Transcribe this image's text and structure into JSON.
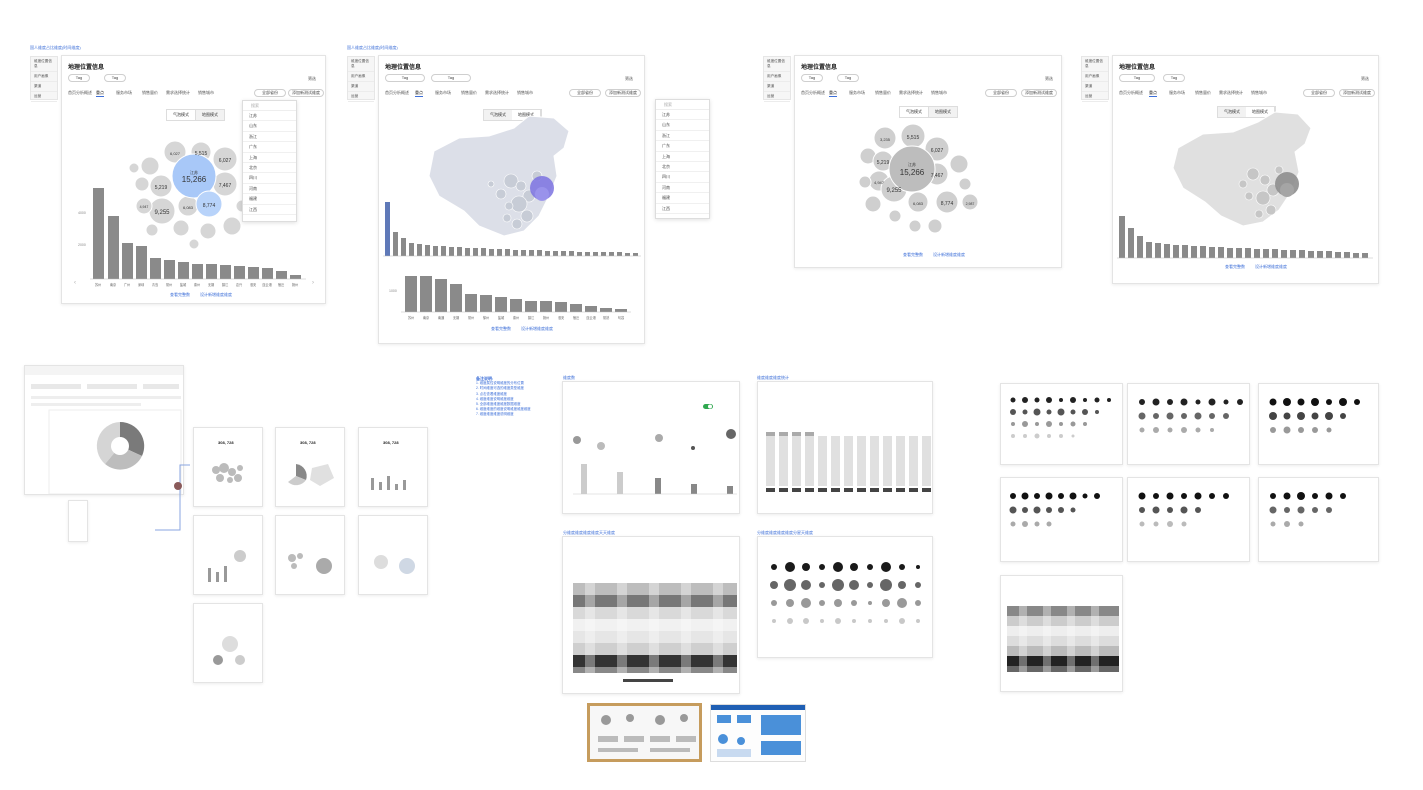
{
  "artboards": {
    "a1_title": "国人维度占比维度(时间维度)",
    "a2_title": "国人维度占比维度(时间维度)"
  },
  "widget": {
    "title": "地理位置信息",
    "tag1": "Tag",
    "tag2": "Tag",
    "tag3": "Tag",
    "filter_label": "筛选",
    "tabs": [
      "首页分析概述",
      "重点",
      "服务市场",
      "销售量价",
      "需求选择统计",
      "销售城市"
    ],
    "select_label": "全部省份",
    "add_label": "添加新测试维度",
    "toggle_bubble": "气泡模式",
    "toggle_map": "地图模式",
    "link_detail": "查看完整数",
    "link_more": "设计新增维度维度"
  },
  "sidebar": {
    "items": [
      "维度位置信息",
      "用户画像",
      "渠道",
      "运营"
    ]
  },
  "dropdown": {
    "placeholder": "搜索",
    "items": [
      "江苏",
      "山东",
      "浙江",
      "广东",
      "上海",
      "北京",
      "四川",
      "河南",
      "福建",
      "江西"
    ]
  },
  "bubbles": [
    {
      "label": "江苏",
      "value": "15,266"
    },
    {
      "label": "北京",
      "value": "6,027"
    },
    {
      "label": "四川",
      "value": "5,515"
    },
    {
      "label": "山东",
      "value": "9,255"
    },
    {
      "label": "广东",
      "value": "8,774"
    },
    {
      "label": "浙江",
      "value": "6,083"
    },
    {
      "label": "上海",
      "value": "7,467"
    },
    {
      "label": "湖北",
      "value": "4,947"
    },
    {
      "label": "河南",
      "value": "5,219"
    },
    {
      "label": "安徽",
      "value": "3,235"
    },
    {
      "label": "湖南",
      "value": "4,360"
    },
    {
      "label": "福建",
      "value": "2,987"
    },
    {
      "label": "陕西",
      "value": "3,860"
    },
    {
      "label": "辽宁",
      "value": "2,376"
    }
  ],
  "bar_categories": [
    "苏州",
    "南京",
    "广州",
    "深圳",
    "青岛",
    "常州",
    "盐城",
    "泰州",
    "无锡",
    "镇江",
    "嘉兴",
    "淮安",
    "连云港",
    "宿迁",
    "扬州"
  ],
  "bar_axis": {
    "top": "4000",
    "mid": "2000",
    "mid2": "3000",
    "low": "1000"
  },
  "notes": {
    "heading": "备注说明:",
    "lines": [
      "1. 维度属性说明维度的分布位置",
      "2. 时间维度可选的维度类型维度",
      "3. 点击查看维度维度",
      "4. 维度维度说明维度维度",
      "5. 全部维度维度维度数据维度",
      "6. 维度维度的维度说明维度维度维度",
      "7. 维度维度维度说明维度"
    ]
  },
  "flow": {
    "card_value": "308, 728",
    "card_title": "城市 - 全部下级维度分布维度"
  },
  "chart_sections": {
    "title_a": "维度数",
    "title_b": "维度维度维度统计",
    "title_c": "分维度维度维度维度天天维度",
    "title_d": "分维度维度维度维度分星天维度",
    "legend_on": "ON",
    "action": "维度维度维度"
  },
  "colors": {
    "accent": "#3d6fd8",
    "bubble_hi": "#a8c8f8",
    "map_hi": "#7b72e0",
    "bar_hi": "#5f79b8",
    "bar": "#8a8a8a",
    "toggle_green": "#2fa84f",
    "thumb_sel": "#c69c5d"
  }
}
